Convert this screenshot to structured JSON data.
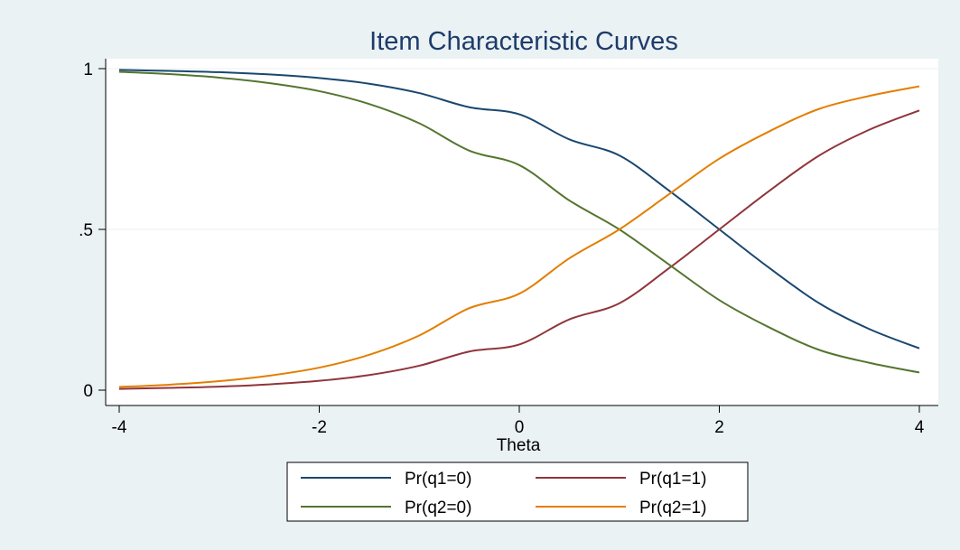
{
  "chart_data": {
    "type": "line",
    "title": "Item Characteristic Curves",
    "xlabel": "Theta",
    "ylabel": "",
    "xlim": [
      -4,
      4
    ],
    "ylim": [
      0,
      1
    ],
    "x_ticks": [
      -4,
      -2,
      0,
      2,
      4
    ],
    "x_tick_labels": [
      "-4",
      "-2",
      "0",
      "2",
      "4"
    ],
    "y_ticks": [
      0,
      0.5,
      1
    ],
    "y_tick_labels": [
      "0",
      ".5",
      "1"
    ],
    "grid": "horizontal",
    "legend_position": "bottom",
    "x": [
      -4,
      -3.5,
      -3,
      -2.5,
      -2,
      -1.5,
      -1,
      -0.5,
      0,
      0.5,
      1,
      1.5,
      2,
      2.5,
      3,
      3.5,
      4
    ],
    "series": [
      {
        "name": "Pr(q1=0)",
        "color": "#1a476f",
        "values": [
          0.996,
          0.993,
          0.989,
          0.982,
          0.971,
          0.953,
          0.924,
          0.88,
          0.858,
          0.78,
          0.73,
          0.62,
          0.5,
          0.38,
          0.27,
          0.19,
          0.13
        ]
      },
      {
        "name": "Pr(q1=1)",
        "color": "#90353b",
        "values": [
          0.004,
          0.007,
          0.011,
          0.018,
          0.029,
          0.047,
          0.076,
          0.12,
          0.142,
          0.22,
          0.27,
          0.38,
          0.5,
          0.62,
          0.73,
          0.81,
          0.87
        ]
      },
      {
        "name": "Pr(q2=0)",
        "color": "#55752f",
        "values": [
          0.99,
          0.983,
          0.972,
          0.955,
          0.93,
          0.89,
          0.83,
          0.745,
          0.7,
          0.59,
          0.5,
          0.39,
          0.28,
          0.195,
          0.125,
          0.085,
          0.055
        ]
      },
      {
        "name": "Pr(q2=1)",
        "color": "#e37e00",
        "values": [
          0.01,
          0.017,
          0.028,
          0.045,
          0.07,
          0.11,
          0.17,
          0.255,
          0.3,
          0.41,
          0.5,
          0.61,
          0.72,
          0.805,
          0.875,
          0.915,
          0.945
        ]
      }
    ]
  }
}
